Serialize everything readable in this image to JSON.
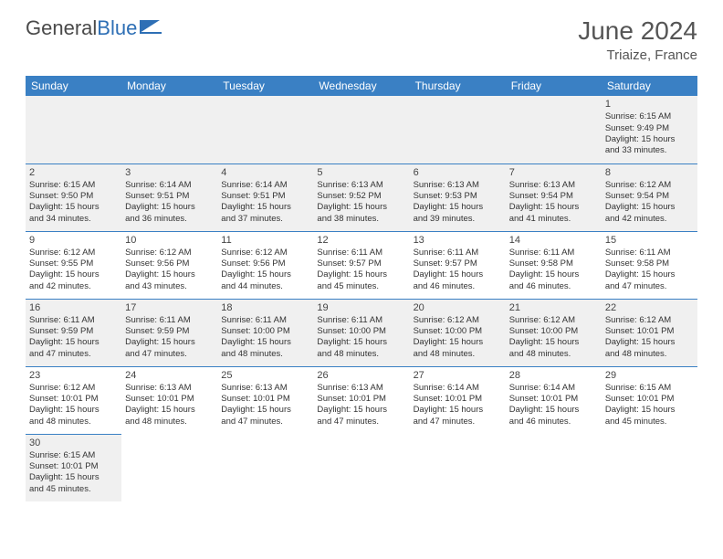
{
  "brand": {
    "part1": "General",
    "part2": "Blue"
  },
  "title": "June 2024",
  "location": "Triaize, France",
  "header_bg": "#3a80c4",
  "day_names": [
    "Sunday",
    "Monday",
    "Tuesday",
    "Wednesday",
    "Thursday",
    "Friday",
    "Saturday"
  ],
  "cell_font_size": 9.5,
  "daynum_color": "#444444",
  "text_color": "#333333",
  "weeks": [
    [
      null,
      null,
      null,
      null,
      null,
      null,
      {
        "n": "1",
        "sr": "Sunrise: 6:15 AM",
        "ss": "Sunset: 9:49 PM",
        "d1": "Daylight: 15 hours",
        "d2": "and 33 minutes."
      }
    ],
    [
      {
        "n": "2",
        "sr": "Sunrise: 6:15 AM",
        "ss": "Sunset: 9:50 PM",
        "d1": "Daylight: 15 hours",
        "d2": "and 34 minutes."
      },
      {
        "n": "3",
        "sr": "Sunrise: 6:14 AM",
        "ss": "Sunset: 9:51 PM",
        "d1": "Daylight: 15 hours",
        "d2": "and 36 minutes."
      },
      {
        "n": "4",
        "sr": "Sunrise: 6:14 AM",
        "ss": "Sunset: 9:51 PM",
        "d1": "Daylight: 15 hours",
        "d2": "and 37 minutes."
      },
      {
        "n": "5",
        "sr": "Sunrise: 6:13 AM",
        "ss": "Sunset: 9:52 PM",
        "d1": "Daylight: 15 hours",
        "d2": "and 38 minutes."
      },
      {
        "n": "6",
        "sr": "Sunrise: 6:13 AM",
        "ss": "Sunset: 9:53 PM",
        "d1": "Daylight: 15 hours",
        "d2": "and 39 minutes."
      },
      {
        "n": "7",
        "sr": "Sunrise: 6:13 AM",
        "ss": "Sunset: 9:54 PM",
        "d1": "Daylight: 15 hours",
        "d2": "and 41 minutes."
      },
      {
        "n": "8",
        "sr": "Sunrise: 6:12 AM",
        "ss": "Sunset: 9:54 PM",
        "d1": "Daylight: 15 hours",
        "d2": "and 42 minutes."
      }
    ],
    [
      {
        "n": "9",
        "sr": "Sunrise: 6:12 AM",
        "ss": "Sunset: 9:55 PM",
        "d1": "Daylight: 15 hours",
        "d2": "and 42 minutes."
      },
      {
        "n": "10",
        "sr": "Sunrise: 6:12 AM",
        "ss": "Sunset: 9:56 PM",
        "d1": "Daylight: 15 hours",
        "d2": "and 43 minutes."
      },
      {
        "n": "11",
        "sr": "Sunrise: 6:12 AM",
        "ss": "Sunset: 9:56 PM",
        "d1": "Daylight: 15 hours",
        "d2": "and 44 minutes."
      },
      {
        "n": "12",
        "sr": "Sunrise: 6:11 AM",
        "ss": "Sunset: 9:57 PM",
        "d1": "Daylight: 15 hours",
        "d2": "and 45 minutes."
      },
      {
        "n": "13",
        "sr": "Sunrise: 6:11 AM",
        "ss": "Sunset: 9:57 PM",
        "d1": "Daylight: 15 hours",
        "d2": "and 46 minutes."
      },
      {
        "n": "14",
        "sr": "Sunrise: 6:11 AM",
        "ss": "Sunset: 9:58 PM",
        "d1": "Daylight: 15 hours",
        "d2": "and 46 minutes."
      },
      {
        "n": "15",
        "sr": "Sunrise: 6:11 AM",
        "ss": "Sunset: 9:58 PM",
        "d1": "Daylight: 15 hours",
        "d2": "and 47 minutes."
      }
    ],
    [
      {
        "n": "16",
        "sr": "Sunrise: 6:11 AM",
        "ss": "Sunset: 9:59 PM",
        "d1": "Daylight: 15 hours",
        "d2": "and 47 minutes."
      },
      {
        "n": "17",
        "sr": "Sunrise: 6:11 AM",
        "ss": "Sunset: 9:59 PM",
        "d1": "Daylight: 15 hours",
        "d2": "and 47 minutes."
      },
      {
        "n": "18",
        "sr": "Sunrise: 6:11 AM",
        "ss": "Sunset: 10:00 PM",
        "d1": "Daylight: 15 hours",
        "d2": "and 48 minutes."
      },
      {
        "n": "19",
        "sr": "Sunrise: 6:11 AM",
        "ss": "Sunset: 10:00 PM",
        "d1": "Daylight: 15 hours",
        "d2": "and 48 minutes."
      },
      {
        "n": "20",
        "sr": "Sunrise: 6:12 AM",
        "ss": "Sunset: 10:00 PM",
        "d1": "Daylight: 15 hours",
        "d2": "and 48 minutes."
      },
      {
        "n": "21",
        "sr": "Sunrise: 6:12 AM",
        "ss": "Sunset: 10:00 PM",
        "d1": "Daylight: 15 hours",
        "d2": "and 48 minutes."
      },
      {
        "n": "22",
        "sr": "Sunrise: 6:12 AM",
        "ss": "Sunset: 10:01 PM",
        "d1": "Daylight: 15 hours",
        "d2": "and 48 minutes."
      }
    ],
    [
      {
        "n": "23",
        "sr": "Sunrise: 6:12 AM",
        "ss": "Sunset: 10:01 PM",
        "d1": "Daylight: 15 hours",
        "d2": "and 48 minutes."
      },
      {
        "n": "24",
        "sr": "Sunrise: 6:13 AM",
        "ss": "Sunset: 10:01 PM",
        "d1": "Daylight: 15 hours",
        "d2": "and 48 minutes."
      },
      {
        "n": "25",
        "sr": "Sunrise: 6:13 AM",
        "ss": "Sunset: 10:01 PM",
        "d1": "Daylight: 15 hours",
        "d2": "and 47 minutes."
      },
      {
        "n": "26",
        "sr": "Sunrise: 6:13 AM",
        "ss": "Sunset: 10:01 PM",
        "d1": "Daylight: 15 hours",
        "d2": "and 47 minutes."
      },
      {
        "n": "27",
        "sr": "Sunrise: 6:14 AM",
        "ss": "Sunset: 10:01 PM",
        "d1": "Daylight: 15 hours",
        "d2": "and 47 minutes."
      },
      {
        "n": "28",
        "sr": "Sunrise: 6:14 AM",
        "ss": "Sunset: 10:01 PM",
        "d1": "Daylight: 15 hours",
        "d2": "and 46 minutes."
      },
      {
        "n": "29",
        "sr": "Sunrise: 6:15 AM",
        "ss": "Sunset: 10:01 PM",
        "d1": "Daylight: 15 hours",
        "d2": "and 45 minutes."
      }
    ],
    [
      {
        "n": "30",
        "sr": "Sunrise: 6:15 AM",
        "ss": "Sunset: 10:01 PM",
        "d1": "Daylight: 15 hours",
        "d2": "and 45 minutes."
      },
      null,
      null,
      null,
      null,
      null,
      null
    ]
  ]
}
